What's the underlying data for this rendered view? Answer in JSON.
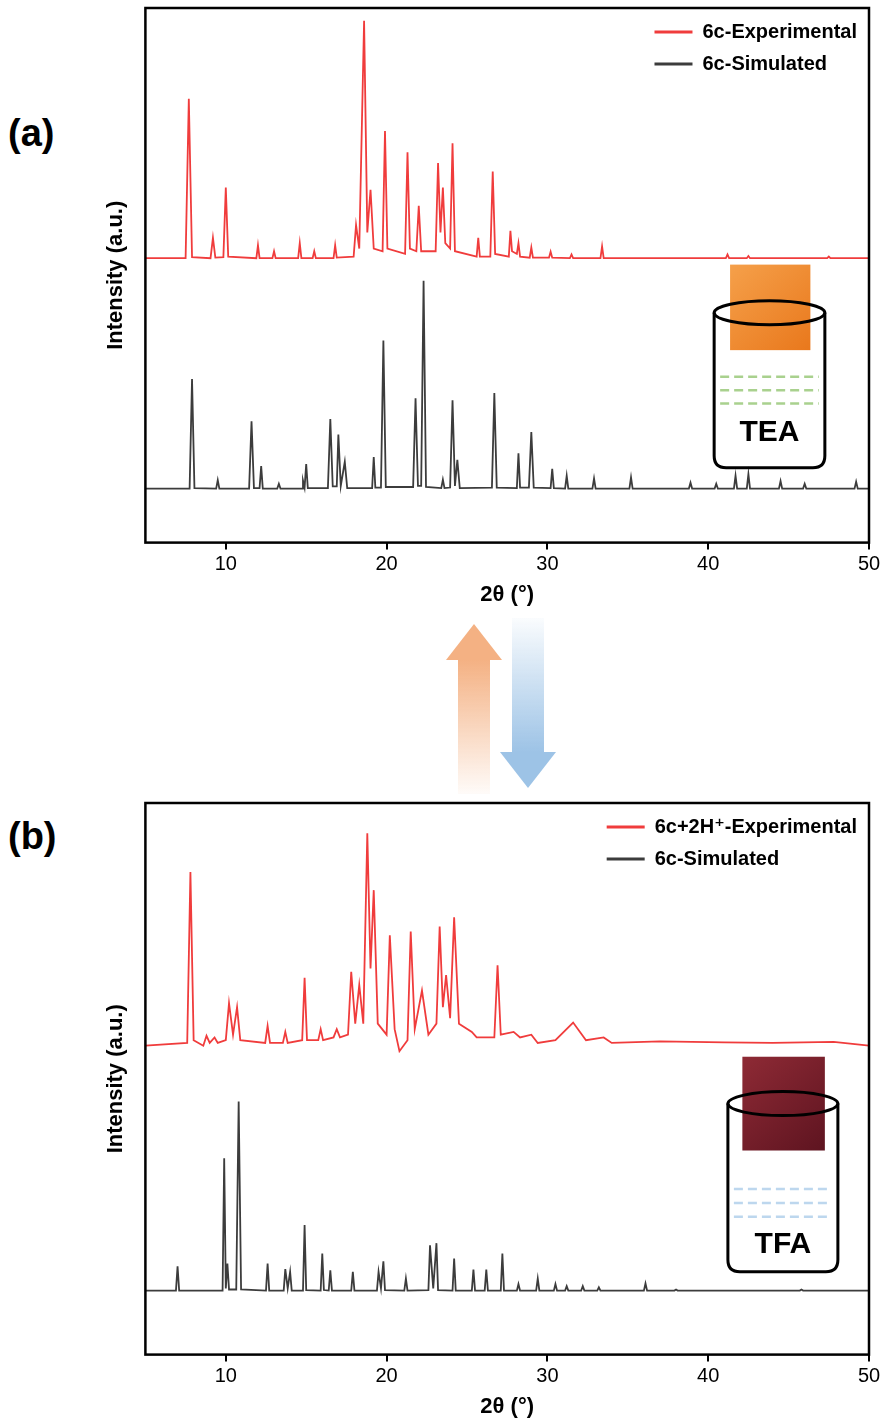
{
  "chart_data": [
    {
      "type": "line",
      "panel_label": "(a)",
      "xlabel": "2θ (°)",
      "ylabel": "Intensity (a.u.)",
      "xlim": [
        5,
        50
      ],
      "xticks": [
        10,
        20,
        30,
        40,
        50
      ],
      "ylim": [
        0,
        100
      ],
      "tick_labels": "x",
      "grid": false,
      "legend": "upper right",
      "annotations": [
        "TEA"
      ],
      "series": [
        {
          "name": "6c-Experimental",
          "color": "#f03c3c",
          "x": [
            5,
            7.5,
            7.7,
            7.9,
            9.05,
            9.2,
            9.35,
            9.85,
            10.0,
            10.15,
            11.9,
            12.0,
            12.1,
            12.9,
            13.0,
            13.1,
            14.5,
            14.6,
            14.7,
            15.4,
            15.5,
            15.6,
            16.7,
            16.8,
            16.9,
            17.95,
            18.1,
            18.3,
            18.6,
            18.8,
            19.0,
            19.2,
            19.75,
            19.9,
            20.05,
            21.15,
            21.3,
            21.45,
            21.85,
            22.0,
            22.15,
            23.05,
            23.2,
            23.35,
            23.5,
            23.65,
            23.95,
            24.1,
            24.25,
            25.6,
            25.7,
            25.8,
            26.45,
            26.6,
            26.75,
            27.6,
            27.7,
            27.8,
            28.1,
            28.2,
            28.3,
            28.9,
            29.0,
            29.1,
            30.1,
            30.2,
            30.3,
            31.4,
            31.5,
            31.6,
            33.3,
            33.4,
            33.5,
            41.1,
            41.2,
            41.3,
            42.4,
            42.5,
            42.6,
            47.4,
            47.5,
            47.6,
            50
          ],
          "values": [
            53.2,
            53.2,
            83,
            53.4,
            53.2,
            57,
            53.3,
            53.4,
            66.4,
            53.5,
            53.2,
            55.6,
            53.2,
            53.2,
            54.5,
            53.2,
            53.2,
            56,
            53.2,
            53.2,
            54.5,
            53.2,
            53.2,
            55.6,
            53.3,
            53.5,
            59.4,
            55,
            97.6,
            58,
            66,
            55,
            54.5,
            77,
            55,
            54,
            73,
            55,
            54.5,
            63,
            54.5,
            54.5,
            71,
            58,
            66.4,
            56,
            55,
            74.7,
            54.5,
            53.5,
            57,
            53.5,
            53.5,
            69.4,
            54,
            53.5,
            58.3,
            54.5,
            54,
            56,
            53.5,
            53.3,
            55.2,
            53.3,
            53.3,
            54.4,
            53.3,
            53.2,
            53.9,
            53.2,
            53.2,
            55.4,
            53.2,
            53.2,
            53.9,
            53.2,
            53.2,
            53.6,
            53.2,
            53.2,
            53.5,
            53.2,
            53.2
          ]
        },
        {
          "name": "6c-Simulated",
          "color": "#3c3c3c",
          "x": [
            5,
            7.75,
            7.9,
            8.05,
            9.4,
            9.5,
            9.6,
            11.45,
            11.6,
            11.75,
            12.1,
            12.2,
            12.3,
            13.2,
            13.3,
            13.4,
            14.75,
            14.8,
            14.9,
            15.0,
            15.1,
            16.35,
            16.5,
            16.65,
            16.9,
            17.0,
            17.15,
            17.4,
            17.55,
            19.1,
            19.2,
            19.3,
            19.65,
            19.8,
            19.95,
            21.65,
            21.8,
            21.95,
            22.15,
            22.3,
            22.45,
            23.4,
            23.5,
            23.6,
            23.95,
            24.1,
            24.25,
            24.4,
            24.55,
            26.55,
            26.7,
            26.85,
            28.1,
            28.2,
            28.3,
            28.85,
            29.0,
            29.15,
            30.2,
            30.3,
            30.4,
            31.1,
            31.2,
            31.3,
            32.8,
            32.9,
            33.0,
            35.1,
            35.2,
            35.3,
            38.8,
            38.9,
            39.0,
            40.4,
            40.5,
            40.6,
            41.6,
            41.7,
            41.8,
            42.4,
            42.5,
            42.6,
            44.4,
            44.5,
            44.6,
            45.9,
            46.0,
            46.1,
            49.1,
            49.2,
            49.3,
            50
          ],
          "values": [
            10.1,
            10.1,
            30.6,
            10.2,
            10.1,
            11.7,
            10.1,
            10.1,
            22.7,
            10.2,
            10.2,
            14.3,
            10.1,
            10.1,
            11,
            10.1,
            10.1,
            11.6,
            10.3,
            14.7,
            10.2,
            10.2,
            23.1,
            10.5,
            10.5,
            20.2,
            10.6,
            15.1,
            10.2,
            10.2,
            16,
            10.3,
            10.3,
            37.8,
            10.4,
            10.4,
            27,
            10.6,
            10.6,
            49,
            10.4,
            10.2,
            11.8,
            10.2,
            10.3,
            26.6,
            10.6,
            15.5,
            10.2,
            10.3,
            28,
            10.3,
            10.2,
            16.7,
            10.3,
            10.3,
            20.7,
            10.3,
            10.2,
            13.8,
            10.2,
            10.1,
            12.5,
            10.1,
            10.1,
            12,
            10.1,
            10.1,
            12.2,
            10.1,
            10.1,
            11.2,
            10.1,
            10.1,
            11,
            10.1,
            10.1,
            12.5,
            10.1,
            10.1,
            12.8,
            10.1,
            10.1,
            11.5,
            10.1,
            10.1,
            11,
            10.1,
            10.1,
            11.4,
            10.1,
            10.1
          ]
        }
      ]
    },
    {
      "type": "line",
      "panel_label": "(b)",
      "xlabel": "2θ (°)",
      "ylabel": "Intensity (a.u.)",
      "xlim": [
        5,
        50
      ],
      "xticks": [
        10,
        20,
        30,
        40,
        50
      ],
      "ylim": [
        0,
        100
      ],
      "tick_labels": "x",
      "grid": false,
      "legend": "upper right",
      "annotations": [
        "TFA"
      ],
      "series": [
        {
          "name": "6c+2H⁺-Experimental",
          "color": "#f03c3c",
          "x": [
            5,
            7.6,
            7.8,
            8.0,
            8.6,
            8.8,
            9.0,
            9.3,
            9.5,
            10.0,
            10.2,
            10.45,
            10.7,
            10.9,
            12.45,
            12.6,
            12.75,
            13.55,
            13.7,
            13.85,
            14.75,
            14.9,
            15.05,
            15.75,
            15.9,
            16.05,
            16.7,
            16.9,
            17.1,
            17.6,
            17.8,
            18.05,
            18.3,
            18.55,
            18.8,
            19.0,
            19.2,
            19.45,
            20.0,
            20.2,
            20.5,
            20.8,
            21.3,
            21.5,
            21.75,
            22.2,
            22.6,
            23.1,
            23.3,
            23.5,
            23.7,
            23.95,
            24.2,
            24.5,
            25.3,
            25.6,
            26.7,
            26.9,
            27.1,
            27.9,
            28.3,
            29.0,
            29.4,
            30.5,
            31.6,
            32.4,
            33.5,
            34,
            37,
            41,
            44,
            47.8,
            50
          ],
          "values": [
            56,
            56.5,
            87.5,
            57,
            56,
            57.8,
            56.5,
            57.5,
            56.5,
            57,
            63.7,
            58,
            63,
            57,
            56.5,
            59.6,
            56.5,
            56.5,
            58.5,
            56.5,
            57,
            68.3,
            57,
            57,
            59,
            57,
            57.5,
            59,
            57.5,
            58,
            69.4,
            60,
            67,
            60,
            94.5,
            70,
            84.2,
            60,
            58,
            76,
            59,
            55,
            57,
            76.7,
            59,
            66,
            58,
            60,
            77.6,
            63,
            68.8,
            61,
            79.3,
            60,
            58.5,
            57.5,
            57.5,
            70.6,
            58,
            58.5,
            57.5,
            58,
            56.5,
            57,
            60.2,
            57,
            57.5,
            56.5,
            56.8,
            56.6,
            56.5,
            56.7,
            56
          ]
        },
        {
          "name": "6c-Simulated",
          "color": "#3c3c3c",
          "x": [
            5,
            6.9,
            7.0,
            7.1,
            9.8,
            9.9,
            10.0,
            10.1,
            10.2,
            10.65,
            10.8,
            10.95,
            12.5,
            12.6,
            12.7,
            13.6,
            13.7,
            13.85,
            14.0,
            14.1,
            14.8,
            14.9,
            15.0,
            15.9,
            16.0,
            16.1,
            16.4,
            16.5,
            16.6,
            17.8,
            17.9,
            18.0,
            19.4,
            19.5,
            19.65,
            19.8,
            19.9,
            21.1,
            21.2,
            21.3,
            22.6,
            22.7,
            22.9,
            23.1,
            23.2,
            24.1,
            24.2,
            24.3,
            25.3,
            25.4,
            25.5,
            26.1,
            26.2,
            26.3,
            27.1,
            27.2,
            27.3,
            28.1,
            28.2,
            28.3,
            29.3,
            29.4,
            29.5,
            30.4,
            30.5,
            30.6,
            31.1,
            31.2,
            31.3,
            32.1,
            32.2,
            32.3,
            33.1,
            33.2,
            33.3,
            36.0,
            36.1,
            36.2,
            37.9,
            38.0,
            38.1,
            45.7,
            45.8,
            45.9,
            50
          ],
          "values": [
            11.6,
            11.6,
            16,
            11.6,
            11.6,
            35.6,
            12,
            16.5,
            11.8,
            11.8,
            45.9,
            11.8,
            11.6,
            16.5,
            11.6,
            11.6,
            15.5,
            12,
            15,
            11.6,
            11.6,
            23.5,
            11.7,
            11.6,
            18.3,
            11.7,
            11.6,
            15.3,
            11.6,
            11.6,
            15,
            11.6,
            11.6,
            15,
            12,
            16.9,
            11.7,
            11.6,
            13.8,
            11.6,
            11.7,
            19.8,
            12,
            20.2,
            11.7,
            11.6,
            17.4,
            11.6,
            11.6,
            15.4,
            11.6,
            11.6,
            15.4,
            11.6,
            11.6,
            18.3,
            11.6,
            11.6,
            12.8,
            11.6,
            11.6,
            13.8,
            11.6,
            11.6,
            12.8,
            11.6,
            11.6,
            12.4,
            11.6,
            11.6,
            12.4,
            11.6,
            11.6,
            12.2,
            11.6,
            11.6,
            12.9,
            11.6,
            11.6,
            11.8,
            11.6,
            11.6,
            11.8,
            11.6,
            11.6
          ]
        }
      ]
    }
  ]
}
